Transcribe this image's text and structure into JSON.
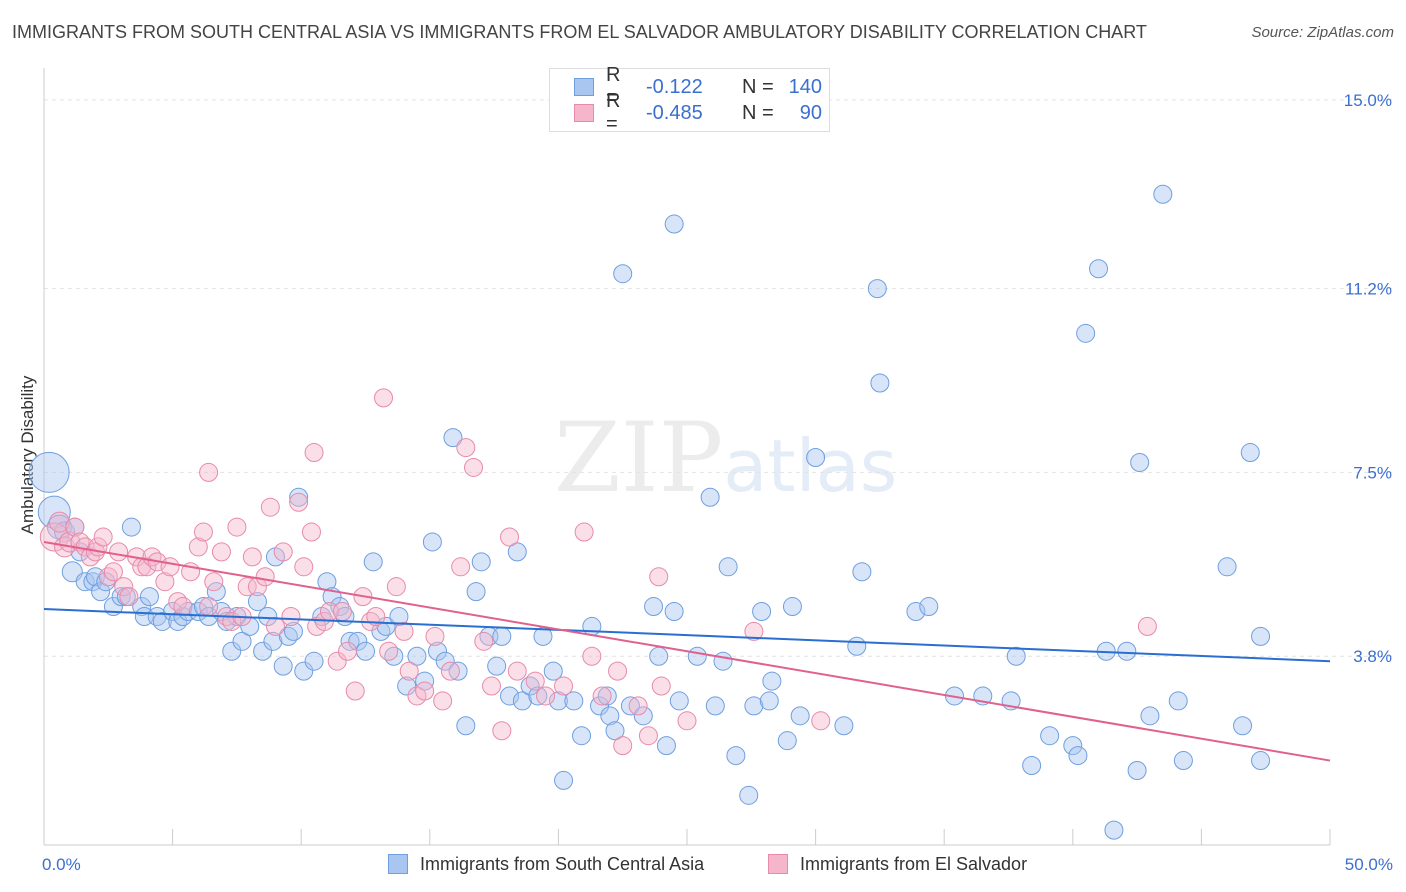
{
  "title": "IMMIGRANTS FROM SOUTH CENTRAL ASIA VS IMMIGRANTS FROM EL SALVADOR AMBULATORY DISABILITY CORRELATION CHART",
  "source": "Source: ZipAtlas.com",
  "watermark": {
    "zip": "ZIP",
    "atlas": "atlas"
  },
  "legend": {
    "rows": [
      {
        "r_label": "R =",
        "r_value": "-0.122",
        "n_label": "N =",
        "n_value": "140"
      },
      {
        "r_label": "R =",
        "r_value": "-0.485",
        "n_label": "N =",
        "n_value": "90"
      }
    ]
  },
  "bottom_legend": {
    "blue": "Immigrants from South Central Asia",
    "pink": "Immigrants from El Salvador"
  },
  "colors": {
    "blue_fill": "#a8c6f0",
    "blue_stroke": "#6f9fe0",
    "blue_line": "#2a6fd0",
    "pink_fill": "#f5b6cc",
    "pink_stroke": "#e88aab",
    "pink_line": "#e0608e",
    "tick_text": "#3a6fd0",
    "grid": "#e2e2e2"
  },
  "chart_data": {
    "type": "scatter",
    "title": "IMMIGRANTS FROM SOUTH CENTRAL ASIA VS IMMIGRANTS FROM EL SALVADOR AMBULATORY DISABILITY CORRELATION CHART",
    "xlabel": "",
    "ylabel": "Ambulatory Disability",
    "xlim": [
      0,
      50
    ],
    "ylim": [
      0,
      15.5
    ],
    "x_tick_labels": [
      "0.0%",
      "50.0%"
    ],
    "y_ticks": [
      3.8,
      7.5,
      11.2,
      15.0
    ],
    "y_tick_labels": [
      "3.8%",
      "7.5%",
      "11.2%",
      "15.0%"
    ],
    "series": [
      {
        "name": "Immigrants from South Central Asia",
        "color": "blue",
        "R": -0.122,
        "N": 140,
        "trend": {
          "x": [
            0,
            50
          ],
          "y": [
            4.75,
            3.7
          ]
        },
        "points": [
          [
            0.2,
            7.5,
            20
          ],
          [
            0.4,
            6.7,
            16
          ],
          [
            0.6,
            6.4,
            12
          ],
          [
            0.8,
            6.3,
            10
          ],
          [
            1.1,
            5.5,
            10
          ],
          [
            1.2,
            6.4,
            9
          ],
          [
            1.4,
            5.9,
            9
          ],
          [
            1.6,
            5.3,
            9
          ],
          [
            1.9,
            5.3,
            9
          ],
          [
            2.0,
            5.4,
            9
          ],
          [
            2.2,
            5.1,
            9
          ],
          [
            2.4,
            5.3,
            9
          ],
          [
            2.7,
            4.8,
            9
          ],
          [
            3.0,
            5.0,
            9
          ],
          [
            3.2,
            5.0,
            9
          ],
          [
            3.4,
            6.4,
            9
          ],
          [
            3.8,
            4.8,
            9
          ],
          [
            3.9,
            4.6,
            9
          ],
          [
            4.1,
            5.0,
            9
          ],
          [
            4.4,
            4.6,
            9
          ],
          [
            4.6,
            4.5,
            9
          ],
          [
            5.0,
            4.7,
            9
          ],
          [
            5.2,
            4.5,
            9
          ],
          [
            5.4,
            4.6,
            9
          ],
          [
            5.6,
            4.7,
            9
          ],
          [
            6.0,
            4.7,
            9
          ],
          [
            6.2,
            4.8,
            9
          ],
          [
            6.4,
            4.6,
            9
          ],
          [
            6.7,
            5.1,
            9
          ],
          [
            6.9,
            4.7,
            9
          ],
          [
            7.1,
            4.5,
            9
          ],
          [
            7.3,
            3.9,
            9
          ],
          [
            7.5,
            4.6,
            9
          ],
          [
            7.7,
            4.1,
            9
          ],
          [
            8.0,
            4.4,
            9
          ],
          [
            8.3,
            4.9,
            9
          ],
          [
            8.5,
            3.9,
            9
          ],
          [
            8.7,
            4.6,
            9
          ],
          [
            8.9,
            4.1,
            9
          ],
          [
            9.0,
            5.8,
            9
          ],
          [
            9.3,
            3.6,
            9
          ],
          [
            9.5,
            4.2,
            9
          ],
          [
            9.7,
            4.3,
            9
          ],
          [
            9.9,
            7.0,
            9
          ],
          [
            10.1,
            3.5,
            9
          ],
          [
            10.5,
            3.7,
            9
          ],
          [
            10.8,
            4.6,
            9
          ],
          [
            11.0,
            5.3,
            9
          ],
          [
            11.2,
            5.0,
            9
          ],
          [
            11.5,
            4.8,
            9
          ],
          [
            11.7,
            4.6,
            9
          ],
          [
            11.9,
            4.1,
            9
          ],
          [
            12.2,
            4.1,
            9
          ],
          [
            12.5,
            3.9,
            9
          ],
          [
            12.8,
            5.7,
            9
          ],
          [
            13.1,
            4.3,
            9
          ],
          [
            13.3,
            4.4,
            9
          ],
          [
            13.6,
            3.8,
            9
          ],
          [
            13.8,
            4.6,
            9
          ],
          [
            14.1,
            3.2,
            9
          ],
          [
            14.5,
            3.8,
            9
          ],
          [
            14.8,
            3.3,
            9
          ],
          [
            15.1,
            6.1,
            9
          ],
          [
            15.3,
            3.9,
            9
          ],
          [
            15.6,
            3.7,
            9
          ],
          [
            15.9,
            8.2,
            9
          ],
          [
            16.1,
            3.5,
            9
          ],
          [
            16.4,
            2.4,
            9
          ],
          [
            16.8,
            5.1,
            9
          ],
          [
            17.0,
            5.7,
            9
          ],
          [
            17.3,
            4.2,
            9
          ],
          [
            17.6,
            3.6,
            9
          ],
          [
            17.8,
            4.2,
            9
          ],
          [
            18.1,
            3.0,
            9
          ],
          [
            18.4,
            5.9,
            9
          ],
          [
            18.6,
            2.9,
            9
          ],
          [
            18.9,
            3.2,
            9
          ],
          [
            19.2,
            3.0,
            9
          ],
          [
            19.4,
            4.2,
            9
          ],
          [
            19.8,
            3.5,
            9
          ],
          [
            20.0,
            2.9,
            9
          ],
          [
            20.2,
            1.3,
            9
          ],
          [
            20.6,
            2.9,
            9
          ],
          [
            20.9,
            2.2,
            9
          ],
          [
            21.3,
            4.4,
            9
          ],
          [
            21.6,
            2.8,
            9
          ],
          [
            21.9,
            3.0,
            9
          ],
          [
            22.0,
            2.6,
            9
          ],
          [
            22.2,
            2.3,
            9
          ],
          [
            22.5,
            11.5,
            9
          ],
          [
            22.8,
            2.8,
            9
          ],
          [
            23.3,
            2.6,
            9
          ],
          [
            23.7,
            4.8,
            9
          ],
          [
            23.9,
            3.8,
            9
          ],
          [
            24.2,
            2.0,
            9
          ],
          [
            24.5,
            4.7,
            9
          ],
          [
            24.7,
            2.9,
            9
          ],
          [
            25.4,
            3.8,
            9
          ],
          [
            25.9,
            7.0,
            9
          ],
          [
            26.1,
            2.8,
            9
          ],
          [
            26.4,
            3.7,
            9
          ],
          [
            26.6,
            5.6,
            9
          ],
          [
            26.9,
            1.8,
            9
          ],
          [
            27.4,
            1.0,
            9
          ],
          [
            27.6,
            2.8,
            9
          ],
          [
            27.9,
            4.7,
            9
          ],
          [
            28.2,
            2.9,
            9
          ],
          [
            28.3,
            3.3,
            9
          ],
          [
            28.9,
            2.1,
            9
          ],
          [
            29.1,
            4.8,
            9
          ],
          [
            29.4,
            2.6,
            9
          ],
          [
            30.0,
            7.8,
            9
          ],
          [
            31.6,
            4.0,
            9
          ],
          [
            31.8,
            5.5,
            9
          ],
          [
            32.5,
            9.3,
            9
          ],
          [
            31.1,
            2.4,
            9
          ],
          [
            32.4,
            11.2,
            9
          ],
          [
            33.9,
            4.7,
            9
          ],
          [
            34.4,
            4.8,
            9
          ],
          [
            35.4,
            3.0,
            9
          ],
          [
            36.5,
            3.0,
            9
          ],
          [
            37.6,
            2.9,
            9
          ],
          [
            37.8,
            3.8,
            9
          ],
          [
            39.1,
            2.2,
            9
          ],
          [
            40.0,
            2.0,
            9
          ],
          [
            40.2,
            1.8,
            9
          ],
          [
            40.5,
            10.3,
            9
          ],
          [
            41.0,
            11.6,
            9
          ],
          [
            41.3,
            3.9,
            9
          ],
          [
            42.1,
            3.9,
            9
          ],
          [
            42.5,
            1.5,
            9
          ],
          [
            42.6,
            7.7,
            9
          ],
          [
            43.0,
            2.6,
            9
          ],
          [
            44.1,
            2.9,
            9
          ],
          [
            44.3,
            1.7,
            9
          ],
          [
            46.6,
            2.4,
            9
          ],
          [
            46.9,
            7.9,
            9
          ],
          [
            47.3,
            1.7,
            9
          ],
          [
            43.5,
            13.1,
            9
          ],
          [
            24.5,
            12.5,
            9
          ],
          [
            46.0,
            5.6,
            9
          ],
          [
            41.6,
            0.3,
            9
          ],
          [
            47.3,
            4.2,
            9
          ],
          [
            38.4,
            1.6,
            9
          ]
        ]
      },
      {
        "name": "Immigrants from El Salvador",
        "color": "pink",
        "R": -0.485,
        "N": 90,
        "trend": {
          "x": [
            0,
            50
          ],
          "y": [
            6.1,
            1.7
          ]
        },
        "points": [
          [
            0.4,
            6.2,
            14
          ],
          [
            0.6,
            6.5,
            10
          ],
          [
            0.8,
            6.0,
            10
          ],
          [
            1.0,
            6.1,
            10
          ],
          [
            1.2,
            6.4,
            9
          ],
          [
            1.4,
            6.1,
            9
          ],
          [
            1.6,
            6.0,
            9
          ],
          [
            1.8,
            5.8,
            9
          ],
          [
            2.0,
            5.9,
            9
          ],
          [
            2.1,
            6.0,
            9
          ],
          [
            2.3,
            6.2,
            9
          ],
          [
            2.5,
            5.4,
            9
          ],
          [
            2.7,
            5.5,
            9
          ],
          [
            2.9,
            5.9,
            9
          ],
          [
            3.1,
            5.2,
            9
          ],
          [
            3.3,
            5.0,
            9
          ],
          [
            3.6,
            5.8,
            9
          ],
          [
            3.8,
            5.6,
            9
          ],
          [
            4.0,
            5.6,
            9
          ],
          [
            4.2,
            5.8,
            9
          ],
          [
            4.4,
            5.7,
            9
          ],
          [
            4.7,
            5.3,
            9
          ],
          [
            4.9,
            5.6,
            9
          ],
          [
            5.2,
            4.9,
            9
          ],
          [
            5.4,
            4.8,
            9
          ],
          [
            5.7,
            5.5,
            9
          ],
          [
            6.0,
            6.0,
            9
          ],
          [
            6.2,
            6.3,
            9
          ],
          [
            6.4,
            4.8,
            9
          ],
          [
            6.6,
            5.3,
            9
          ],
          [
            6.9,
            5.9,
            9
          ],
          [
            7.1,
            4.6,
            9
          ],
          [
            7.3,
            4.5,
            9
          ],
          [
            7.5,
            6.4,
            9
          ],
          [
            7.7,
            4.6,
            9
          ],
          [
            7.9,
            5.2,
            9
          ],
          [
            8.1,
            5.8,
            9
          ],
          [
            8.3,
            5.2,
            9
          ],
          [
            8.6,
            5.4,
            9
          ],
          [
            8.8,
            6.8,
            9
          ],
          [
            9.0,
            4.4,
            9
          ],
          [
            9.3,
            5.9,
            9
          ],
          [
            9.6,
            4.6,
            9
          ],
          [
            9.9,
            6.9,
            9
          ],
          [
            10.1,
            5.6,
            9
          ],
          [
            10.4,
            6.3,
            9
          ],
          [
            10.6,
            4.4,
            9
          ],
          [
            10.9,
            4.5,
            9
          ],
          [
            11.1,
            4.7,
            9
          ],
          [
            11.4,
            3.7,
            9
          ],
          [
            11.6,
            4.7,
            9
          ],
          [
            11.8,
            3.9,
            9
          ],
          [
            12.1,
            3.1,
            9
          ],
          [
            12.4,
            5.0,
            9
          ],
          [
            12.7,
            4.5,
            9
          ],
          [
            12.9,
            4.6,
            9
          ],
          [
            13.2,
            9.0,
            9
          ],
          [
            13.4,
            3.9,
            9
          ],
          [
            13.7,
            5.2,
            9
          ],
          [
            14.0,
            4.3,
            9
          ],
          [
            14.2,
            3.5,
            9
          ],
          [
            14.5,
            3.0,
            9
          ],
          [
            14.8,
            3.1,
            9
          ],
          [
            15.2,
            4.2,
            9
          ],
          [
            15.5,
            2.9,
            9
          ],
          [
            15.8,
            3.5,
            9
          ],
          [
            16.2,
            5.6,
            9
          ],
          [
            16.4,
            8.0,
            9
          ],
          [
            16.7,
            7.6,
            9
          ],
          [
            17.1,
            4.1,
            9
          ],
          [
            17.4,
            3.2,
            9
          ],
          [
            17.8,
            2.3,
            9
          ],
          [
            18.1,
            6.2,
            9
          ],
          [
            18.4,
            3.5,
            9
          ],
          [
            19.1,
            3.3,
            9
          ],
          [
            19.5,
            3.0,
            9
          ],
          [
            20.2,
            3.2,
            9
          ],
          [
            21.0,
            6.3,
            9
          ],
          [
            21.3,
            3.8,
            9
          ],
          [
            21.7,
            3.0,
            9
          ],
          [
            22.3,
            3.5,
            9
          ],
          [
            22.5,
            2.0,
            9
          ],
          [
            23.1,
            2.8,
            9
          ],
          [
            23.9,
            5.4,
            9
          ],
          [
            24.0,
            3.2,
            9
          ],
          [
            25.0,
            2.5,
            9
          ],
          [
            27.6,
            4.3,
            9
          ],
          [
            30.2,
            2.5,
            9
          ],
          [
            42.9,
            4.4,
            9
          ],
          [
            23.5,
            2.2,
            9
          ],
          [
            10.5,
            7.9,
            9
          ],
          [
            6.4,
            7.5,
            9
          ]
        ]
      }
    ]
  }
}
